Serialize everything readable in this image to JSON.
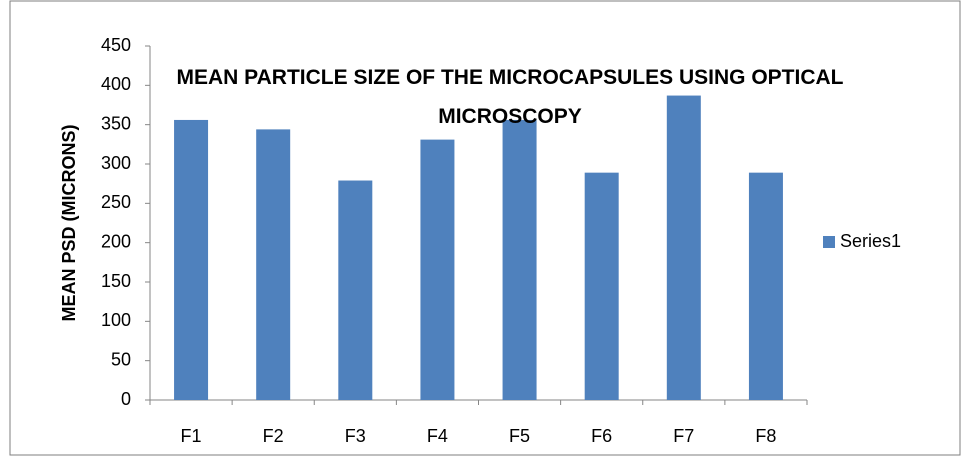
{
  "chart_data": {
    "type": "bar",
    "title": "MEAN PARTICLE SIZE OF THE MICROCAPSULES USING OPTICAL MICROSCOPY",
    "y_label": "MEAN PSD (MICRONS)",
    "categories": [
      "F1",
      "F2",
      "F3",
      "F4",
      "F5",
      "F6",
      "F7",
      "F8"
    ],
    "series": [
      {
        "name": "Series1",
        "color": "#4f81bd",
        "values": [
          356,
          344,
          279,
          331,
          356,
          289,
          387,
          289
        ]
      }
    ],
    "ylim": [
      0,
      450
    ],
    "yticks": [
      0,
      50,
      100,
      150,
      200,
      250,
      300,
      350,
      400,
      450
    ],
    "grid": false,
    "legend": "right"
  }
}
